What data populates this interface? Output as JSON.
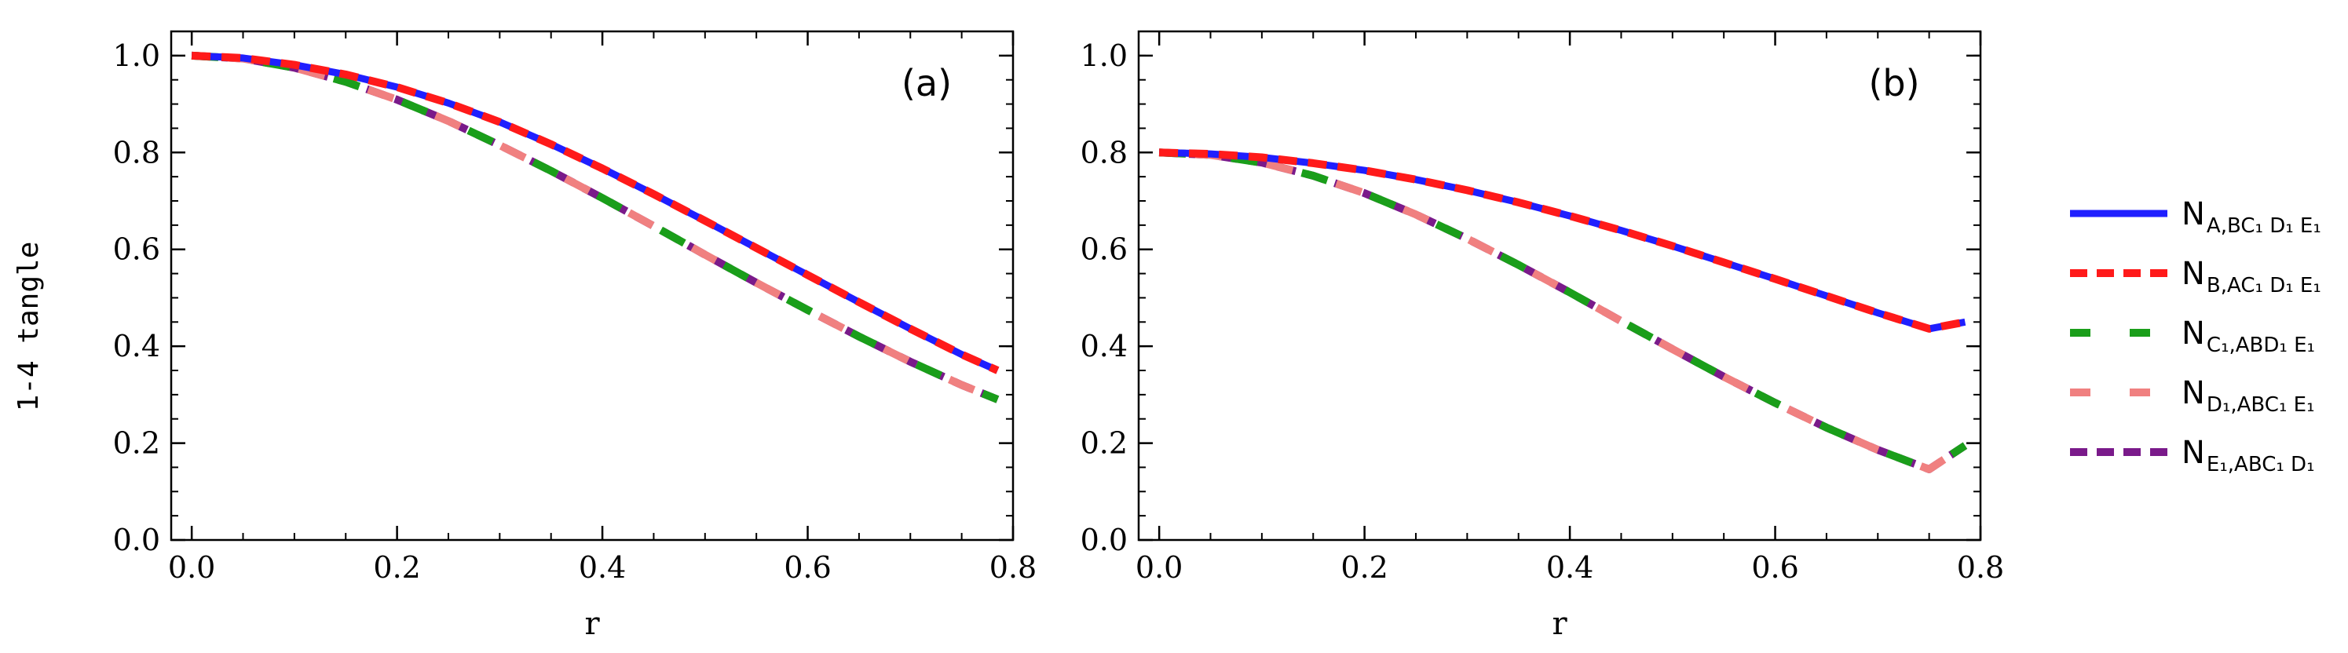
{
  "figure": {
    "ylabel": "1-4 tangle"
  },
  "chart_data": [
    {
      "type": "line",
      "panel_label": "(a)",
      "xlabel": "r",
      "ylabel": "1-4 tangle",
      "xlim": [
        -0.02,
        0.8
      ],
      "ylim": [
        0.0,
        1.05
      ],
      "xticks": [
        0.0,
        0.2,
        0.4,
        0.6,
        0.8
      ],
      "xtick_labels": [
        "0.0",
        "0.2",
        "0.4",
        "0.6",
        "0.8"
      ],
      "yticks": [
        0.0,
        0.2,
        0.4,
        0.6,
        0.8,
        1.0
      ],
      "ytick_labels": [
        "0.0",
        "0.2",
        "0.4",
        "0.6",
        "0.8",
        "1.0"
      ],
      "x": [
        0.0,
        0.05,
        0.1,
        0.15,
        0.2,
        0.25,
        0.3,
        0.35,
        0.4,
        0.45,
        0.5,
        0.55,
        0.6,
        0.65,
        0.7,
        0.75,
        0.785
      ],
      "series": [
        {
          "name": "N_{A,BC1D1E1}",
          "key": "A",
          "values": [
            1.0,
            0.995,
            0.981,
            0.961,
            0.935,
            0.902,
            0.863,
            0.817,
            0.767,
            0.714,
            0.659,
            0.603,
            0.547,
            0.491,
            0.436,
            0.383,
            0.35
          ]
        },
        {
          "name": "N_{B,AC1D1E1}",
          "key": "B",
          "values": [
            1.0,
            0.995,
            0.981,
            0.961,
            0.935,
            0.902,
            0.863,
            0.817,
            0.767,
            0.714,
            0.659,
            0.603,
            0.547,
            0.491,
            0.436,
            0.383,
            0.35
          ]
        },
        {
          "name": "N_{C1,ABD1E1}",
          "key": "C",
          "values": [
            1.0,
            0.994,
            0.975,
            0.946,
            0.909,
            0.865,
            0.815,
            0.762,
            0.706,
            0.648,
            0.589,
            0.531,
            0.475,
            0.42,
            0.368,
            0.32,
            0.29
          ]
        },
        {
          "name": "N_{D1,ABC1E1}",
          "key": "D",
          "values": [
            1.0,
            0.994,
            0.975,
            0.946,
            0.909,
            0.865,
            0.815,
            0.762,
            0.706,
            0.648,
            0.589,
            0.531,
            0.475,
            0.42,
            0.368,
            0.32,
            0.29
          ]
        },
        {
          "name": "N_{E1,ABC1D1}",
          "key": "E",
          "values": [
            1.0,
            0.994,
            0.975,
            0.946,
            0.909,
            0.865,
            0.815,
            0.762,
            0.706,
            0.648,
            0.589,
            0.531,
            0.475,
            0.42,
            0.368,
            0.32,
            0.29
          ]
        }
      ]
    },
    {
      "type": "line",
      "panel_label": "(b)",
      "xlabel": "r",
      "ylabel": "",
      "xlim": [
        -0.02,
        0.8
      ],
      "ylim": [
        0.0,
        1.05
      ],
      "xticks": [
        0.0,
        0.2,
        0.4,
        0.6,
        0.8
      ],
      "xtick_labels": [
        "0.0",
        "0.2",
        "0.4",
        "0.6",
        "0.8"
      ],
      "yticks": [
        0.0,
        0.2,
        0.4,
        0.6,
        0.8,
        1.0
      ],
      "ytick_labels": [
        "0.0",
        "0.2",
        "0.4",
        "0.6",
        "0.8",
        "1.0"
      ],
      "x": [
        0.0,
        0.05,
        0.1,
        0.15,
        0.2,
        0.25,
        0.3,
        0.35,
        0.4,
        0.45,
        0.5,
        0.55,
        0.6,
        0.65,
        0.7,
        0.75,
        0.785
      ],
      "series": [
        {
          "name": "N_{A,BC1D1E1}",
          "key": "A",
          "values": [
            0.8,
            0.797,
            0.79,
            0.778,
            0.763,
            0.744,
            0.722,
            0.697,
            0.669,
            0.639,
            0.607,
            0.573,
            0.539,
            0.504,
            0.469,
            0.436,
            0.45
          ]
        },
        {
          "name": "N_{B,AC1D1E1}",
          "key": "B",
          "values": [
            0.8,
            0.797,
            0.79,
            0.778,
            0.763,
            0.744,
            0.722,
            0.697,
            0.669,
            0.639,
            0.607,
            0.573,
            0.539,
            0.504,
            0.469,
            0.436,
            0.45
          ]
        },
        {
          "name": "N_{C1,ABD1E1}",
          "key": "C",
          "values": [
            0.8,
            0.795,
            0.779,
            0.752,
            0.716,
            0.672,
            0.622,
            0.568,
            0.511,
            0.452,
            0.394,
            0.337,
            0.283,
            0.232,
            0.186,
            0.146,
            0.195
          ]
        },
        {
          "name": "N_{D1,ABC1E1}",
          "key": "D",
          "values": [
            0.8,
            0.795,
            0.779,
            0.752,
            0.716,
            0.672,
            0.622,
            0.568,
            0.511,
            0.452,
            0.394,
            0.337,
            0.283,
            0.232,
            0.186,
            0.146,
            0.195
          ]
        },
        {
          "name": "N_{E1,ABC1D1}",
          "key": "E",
          "values": [
            0.8,
            0.795,
            0.779,
            0.752,
            0.716,
            0.672,
            0.622,
            0.568,
            0.511,
            0.452,
            0.394,
            0.337,
            0.283,
            0.232,
            0.186,
            0.146,
            0.195
          ]
        }
      ]
    }
  ],
  "legend": {
    "placement": "right",
    "items": [
      {
        "key": "A",
        "main": "N",
        "sub": "A,BC₁ D₁ E₁",
        "color": "#1f1fff",
        "style": "solid"
      },
      {
        "key": "B",
        "main": "N",
        "sub": "B,AC₁ D₁ E₁",
        "color": "#ff1a1a",
        "style": "dashed"
      },
      {
        "key": "C",
        "main": "N",
        "sub": "C₁,ABD₁ E₁",
        "color": "#1a9e1a",
        "style": "long-dashed"
      },
      {
        "key": "D",
        "main": "N",
        "sub": "D₁,ABC₁ E₁",
        "color": "#f08080",
        "style": "long-dashed"
      },
      {
        "key": "E",
        "main": "N",
        "sub": "E₁,ABC₁ D₁",
        "color": "#7a1a8a",
        "style": "dashed"
      }
    ]
  },
  "colors": {
    "A": "#1f1fff",
    "B": "#ff1a1a",
    "C": "#1a9e1a",
    "D": "#f08080",
    "E": "#7a1a8a"
  }
}
